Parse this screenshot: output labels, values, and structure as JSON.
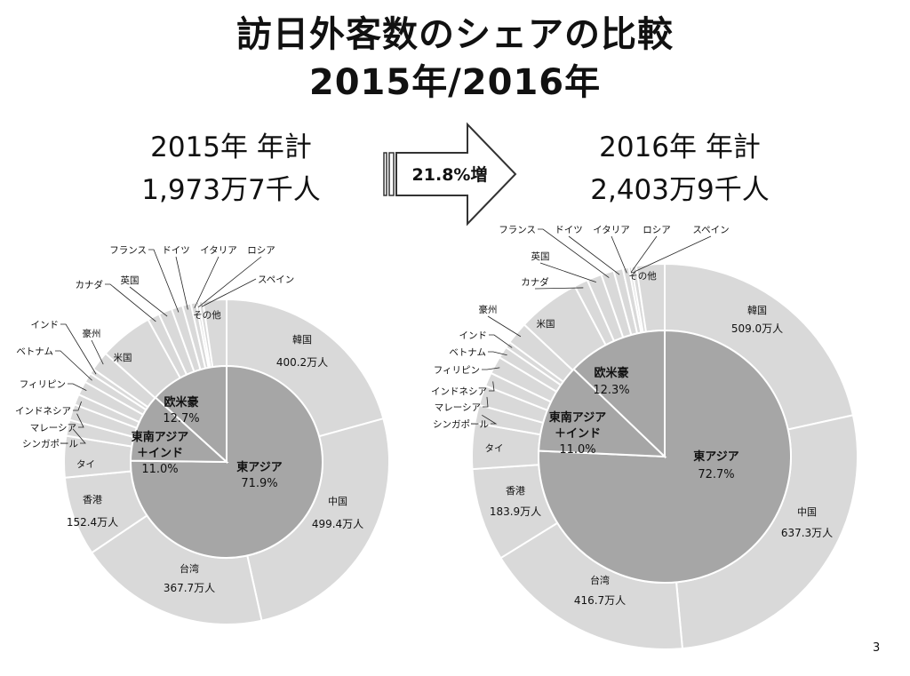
{
  "title": {
    "line1": "訪日外客数のシェアの比較",
    "line2": "2015年/2016年"
  },
  "totals": {
    "y2015": {
      "line1": "2015年 年計",
      "line2": "1,973万7千人"
    },
    "y2016": {
      "line1": "2016年 年計",
      "line2": "2,403万9千人"
    }
  },
  "growth_label": "21.8%増",
  "page_number": "3",
  "colors": {
    "outer": "#d9d9d9",
    "inner": "#a6a6a6",
    "stroke": "#ffffff",
    "arrow_outline": "#333333"
  },
  "chart_data": [
    {
      "type": "pie",
      "subtype": "nested-donut",
      "year": "2015",
      "outer": {
        "categories": [
          "韓国",
          "中国",
          "台湾",
          "香港",
          "タイ",
          "シンガポール",
          "マレーシア",
          "インドネシア",
          "フィリピン",
          "ベトナム",
          "インド",
          "豪州",
          "米国",
          "カナダ",
          "英国",
          "フランス",
          "ドイツ",
          "イタリア",
          "ロシア",
          "スペイン",
          "その他"
        ],
        "values": [
          400.2,
          499.4,
          367.7,
          152.4,
          79.7,
          30.9,
          30.5,
          20.5,
          26.8,
          18.5,
          10.3,
          37.6,
          103.3,
          23.1,
          25.8,
          21.4,
          16.3,
          10.3,
          5.4,
          7.7,
          45.1
        ],
        "data_labels": {
          "韓国": "400.2万人",
          "中国": "499.4万人",
          "台湾": "367.7万人",
          "香港": "152.4万人"
        }
      },
      "inner": {
        "categories": [
          "東アジア",
          "東南アジア＋インド",
          "欧米豪"
        ],
        "values": [
          71.9,
          11.0,
          12.7
        ],
        "data_labels": [
          "71.9%",
          "11.0%",
          "12.7%"
        ]
      }
    },
    {
      "type": "pie",
      "subtype": "nested-donut",
      "year": "2016",
      "outer": {
        "categories": [
          "韓国",
          "中国",
          "台湾",
          "香港",
          "タイ",
          "シンガポール",
          "マレーシア",
          "インドネシア",
          "フィリピン",
          "ベトナム",
          "インド",
          "豪州",
          "米国",
          "カナダ",
          "英国",
          "フランス",
          "ドイツ",
          "イタリア",
          "ロシア",
          "スペイン",
          "その他"
        ],
        "values": [
          509.0,
          637.3,
          416.7,
          183.9,
          90.2,
          36.2,
          39.4,
          27.1,
          34.8,
          23.4,
          12.3,
          44.5,
          124.3,
          27.3,
          29.2,
          25.3,
          18.3,
          11.9,
          5.5,
          9.2,
          55.9
        ],
        "data_labels": {
          "韓国": "509.0万人",
          "中国": "637.3万人",
          "台湾": "416.7万人",
          "香港": "183.9万人"
        }
      },
      "inner": {
        "categories": [
          "東アジア",
          "東南アジア＋インド",
          "欧米豪"
        ],
        "values": [
          72.7,
          11.0,
          12.3
        ],
        "data_labels": [
          "72.7%",
          "11.0%",
          "12.3%"
        ]
      }
    }
  ]
}
